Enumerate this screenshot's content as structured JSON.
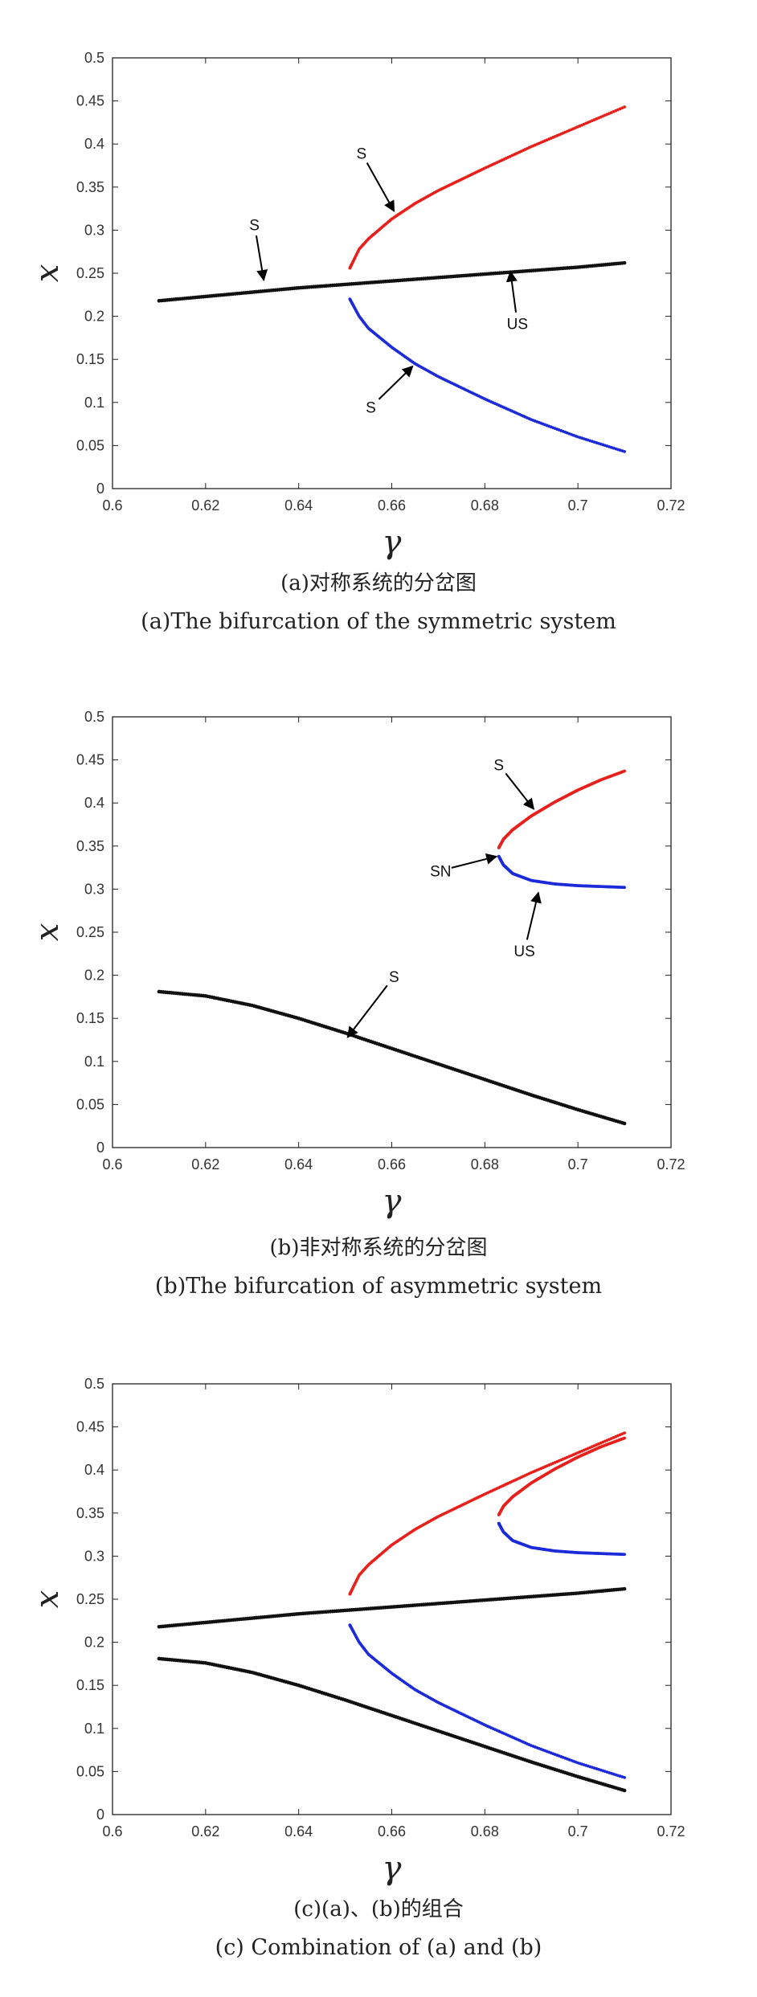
{
  "colors": {
    "stable_upper": "#e8201c",
    "stable_lower": "#1c2ad8",
    "main_branch": "#111111",
    "arrow": "#000000"
  },
  "chart_data": [
    {
      "id": "a",
      "type": "scatter",
      "xlabel": "γ",
      "ylabel": "x",
      "xlim": [
        0.6,
        0.72
      ],
      "ylim": [
        0,
        0.5
      ],
      "xticks": [
        "0.6",
        "0.62",
        "0.64",
        "0.66",
        "0.68",
        "0.7",
        "0.72"
      ],
      "yticks": [
        "0",
        "0.05",
        "0.1",
        "0.15",
        "0.2",
        "0.25",
        "0.3",
        "0.35",
        "0.4",
        "0.45",
        "0.5"
      ],
      "series": [
        {
          "color_key": "main_branch",
          "x": [
            0.61,
            0.62,
            0.63,
            0.64,
            0.65,
            0.66,
            0.67,
            0.68,
            0.69,
            0.7,
            0.71
          ],
          "y": [
            0.218,
            0.223,
            0.228,
            0.233,
            0.237,
            0.241,
            0.245,
            0.249,
            0.253,
            0.257,
            0.262
          ]
        },
        {
          "color_key": "stable_upper",
          "x": [
            0.651,
            0.653,
            0.655,
            0.66,
            0.665,
            0.67,
            0.68,
            0.69,
            0.7,
            0.71
          ],
          "y": [
            0.256,
            0.278,
            0.29,
            0.313,
            0.331,
            0.346,
            0.372,
            0.397,
            0.42,
            0.443
          ]
        },
        {
          "color_key": "stable_lower",
          "x": [
            0.651,
            0.653,
            0.655,
            0.66,
            0.665,
            0.67,
            0.68,
            0.69,
            0.7,
            0.71
          ],
          "y": [
            0.22,
            0.2,
            0.186,
            0.164,
            0.145,
            0.13,
            0.104,
            0.08,
            0.06,
            0.043
          ]
        }
      ],
      "annotations": [
        {
          "text": "S",
          "label_at": [
            0.6305,
            0.3
          ],
          "arrow_to": [
            0.6325,
            0.242
          ]
        },
        {
          "text": "S",
          "label_at": [
            0.6535,
            0.383
          ],
          "arrow_to": [
            0.6605,
            0.322
          ]
        },
        {
          "text": "US",
          "label_at": [
            0.687,
            0.185
          ],
          "arrow_to": [
            0.6855,
            0.252
          ]
        },
        {
          "text": "S",
          "label_at": [
            0.6555,
            0.088
          ],
          "arrow_to": [
            0.6645,
            0.142
          ]
        }
      ],
      "caption_cn": "(a)对称系统的分岔图",
      "caption_en": "(a)The bifurcation of the symmetric system"
    },
    {
      "id": "b",
      "type": "scatter",
      "xlabel": "γ",
      "ylabel": "x",
      "xlim": [
        0.6,
        0.72
      ],
      "ylim": [
        0,
        0.5
      ],
      "xticks": [
        "0.6",
        "0.62",
        "0.64",
        "0.66",
        "0.68",
        "0.7",
        "0.72"
      ],
      "yticks": [
        "0",
        "0.05",
        "0.1",
        "0.15",
        "0.2",
        "0.25",
        "0.3",
        "0.35",
        "0.4",
        "0.45",
        "0.5"
      ],
      "series": [
        {
          "color_key": "main_branch",
          "x": [
            0.61,
            0.62,
            0.63,
            0.64,
            0.65,
            0.66,
            0.67,
            0.68,
            0.69,
            0.7,
            0.71
          ],
          "y": [
            0.181,
            0.176,
            0.165,
            0.15,
            0.133,
            0.115,
            0.097,
            0.079,
            0.061,
            0.044,
            0.028
          ]
        },
        {
          "color_key": "stable_upper",
          "x": [
            0.683,
            0.684,
            0.686,
            0.69,
            0.695,
            0.7,
            0.705,
            0.71
          ],
          "y": [
            0.348,
            0.358,
            0.369,
            0.385,
            0.401,
            0.415,
            0.427,
            0.437
          ]
        },
        {
          "color_key": "stable_lower",
          "x": [
            0.683,
            0.684,
            0.686,
            0.69,
            0.695,
            0.7,
            0.705,
            0.71
          ],
          "y": [
            0.338,
            0.328,
            0.318,
            0.31,
            0.306,
            0.304,
            0.303,
            0.302
          ]
        }
      ],
      "annotations": [
        {
          "text": "S",
          "label_at": [
            0.683,
            0.438
          ],
          "arrow_to": [
            0.6905,
            0.393
          ]
        },
        {
          "text": "SN",
          "label_at": [
            0.6705,
            0.315
          ],
          "arrow_to": [
            0.6825,
            0.338
          ]
        },
        {
          "text": "US",
          "label_at": [
            0.6885,
            0.222
          ],
          "arrow_to": [
            0.6915,
            0.296
          ]
        },
        {
          "text": "S",
          "label_at": [
            0.6605,
            0.192
          ],
          "arrow_to": [
            0.6505,
            0.128
          ]
        }
      ],
      "caption_cn": "(b)非对称系统的分岔图",
      "caption_en": "(b)The bifurcation of asymmetric system"
    },
    {
      "id": "c",
      "type": "scatter",
      "xlabel": "γ",
      "ylabel": "x",
      "xlim": [
        0.6,
        0.72
      ],
      "ylim": [
        0,
        0.5
      ],
      "xticks": [
        "0.6",
        "0.62",
        "0.64",
        "0.66",
        "0.68",
        "0.7",
        "0.72"
      ],
      "yticks": [
        "0",
        "0.05",
        "0.1",
        "0.15",
        "0.2",
        "0.25",
        "0.3",
        "0.35",
        "0.4",
        "0.45",
        "0.5"
      ],
      "series": [
        {
          "color_key": "main_branch",
          "x": [
            0.61,
            0.62,
            0.63,
            0.64,
            0.65,
            0.66,
            0.67,
            0.68,
            0.69,
            0.7,
            0.71
          ],
          "y": [
            0.218,
            0.223,
            0.228,
            0.233,
            0.237,
            0.241,
            0.245,
            0.249,
            0.253,
            0.257,
            0.262
          ]
        },
        {
          "color_key": "stable_upper",
          "x": [
            0.651,
            0.653,
            0.655,
            0.66,
            0.665,
            0.67,
            0.68,
            0.69,
            0.7,
            0.71
          ],
          "y": [
            0.256,
            0.278,
            0.29,
            0.313,
            0.331,
            0.346,
            0.372,
            0.397,
            0.42,
            0.443
          ]
        },
        {
          "color_key": "stable_lower",
          "x": [
            0.651,
            0.653,
            0.655,
            0.66,
            0.665,
            0.67,
            0.68,
            0.69,
            0.7,
            0.71
          ],
          "y": [
            0.22,
            0.2,
            0.186,
            0.164,
            0.145,
            0.13,
            0.104,
            0.08,
            0.06,
            0.043
          ]
        },
        {
          "color_key": "main_branch",
          "x": [
            0.61,
            0.62,
            0.63,
            0.64,
            0.65,
            0.66,
            0.67,
            0.68,
            0.69,
            0.7,
            0.71
          ],
          "y": [
            0.181,
            0.176,
            0.165,
            0.15,
            0.133,
            0.115,
            0.097,
            0.079,
            0.061,
            0.044,
            0.028
          ]
        },
        {
          "color_key": "stable_upper",
          "x": [
            0.683,
            0.684,
            0.686,
            0.69,
            0.695,
            0.7,
            0.705,
            0.71
          ],
          "y": [
            0.348,
            0.358,
            0.369,
            0.385,
            0.401,
            0.415,
            0.427,
            0.437
          ]
        },
        {
          "color_key": "stable_lower",
          "x": [
            0.683,
            0.684,
            0.686,
            0.69,
            0.695,
            0.7,
            0.705,
            0.71
          ],
          "y": [
            0.338,
            0.328,
            0.318,
            0.31,
            0.306,
            0.304,
            0.303,
            0.302
          ]
        }
      ],
      "annotations": [],
      "caption_cn": "(c)(a)、(b)的组合",
      "caption_en": "(c) Combination of (a) and (b)"
    }
  ]
}
